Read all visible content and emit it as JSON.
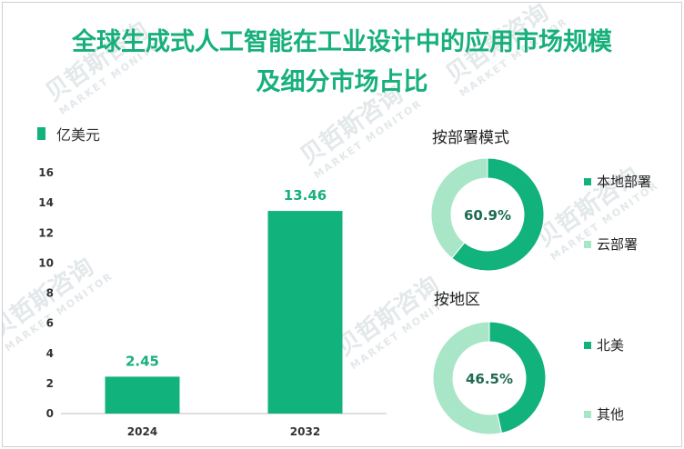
{
  "colors": {
    "primary": "#11b27b",
    "secondary": "#a9e6c8",
    "title": "#17b07b"
  },
  "title_line1": "全球生成式人工智能在工业设计中的应用市场规模",
  "title_line2": "及细分市场占比",
  "chart_data": [
    {
      "type": "bar",
      "categories": [
        "2024",
        "2032"
      ],
      "values": [
        2.45,
        13.46
      ],
      "value_labels": [
        "2.45",
        "13.46"
      ],
      "legend": "亿美元",
      "ylim": [
        0,
        16
      ],
      "yticks": [
        "0",
        "2",
        "4",
        "6",
        "8",
        "10",
        "12",
        "14",
        "16"
      ],
      "legend_position": "top-left",
      "grid": false
    },
    {
      "type": "pie",
      "subtype": "donut",
      "title": "按部署模式",
      "labels": [
        "本地部署",
        "云部署"
      ],
      "values": [
        60.9,
        39.1
      ],
      "center_label": "60.9%"
    },
    {
      "type": "pie",
      "subtype": "donut",
      "title": "按地区",
      "labels": [
        "北美",
        "其他"
      ],
      "values": [
        46.5,
        53.5
      ],
      "center_label": "46.5%"
    }
  ]
}
